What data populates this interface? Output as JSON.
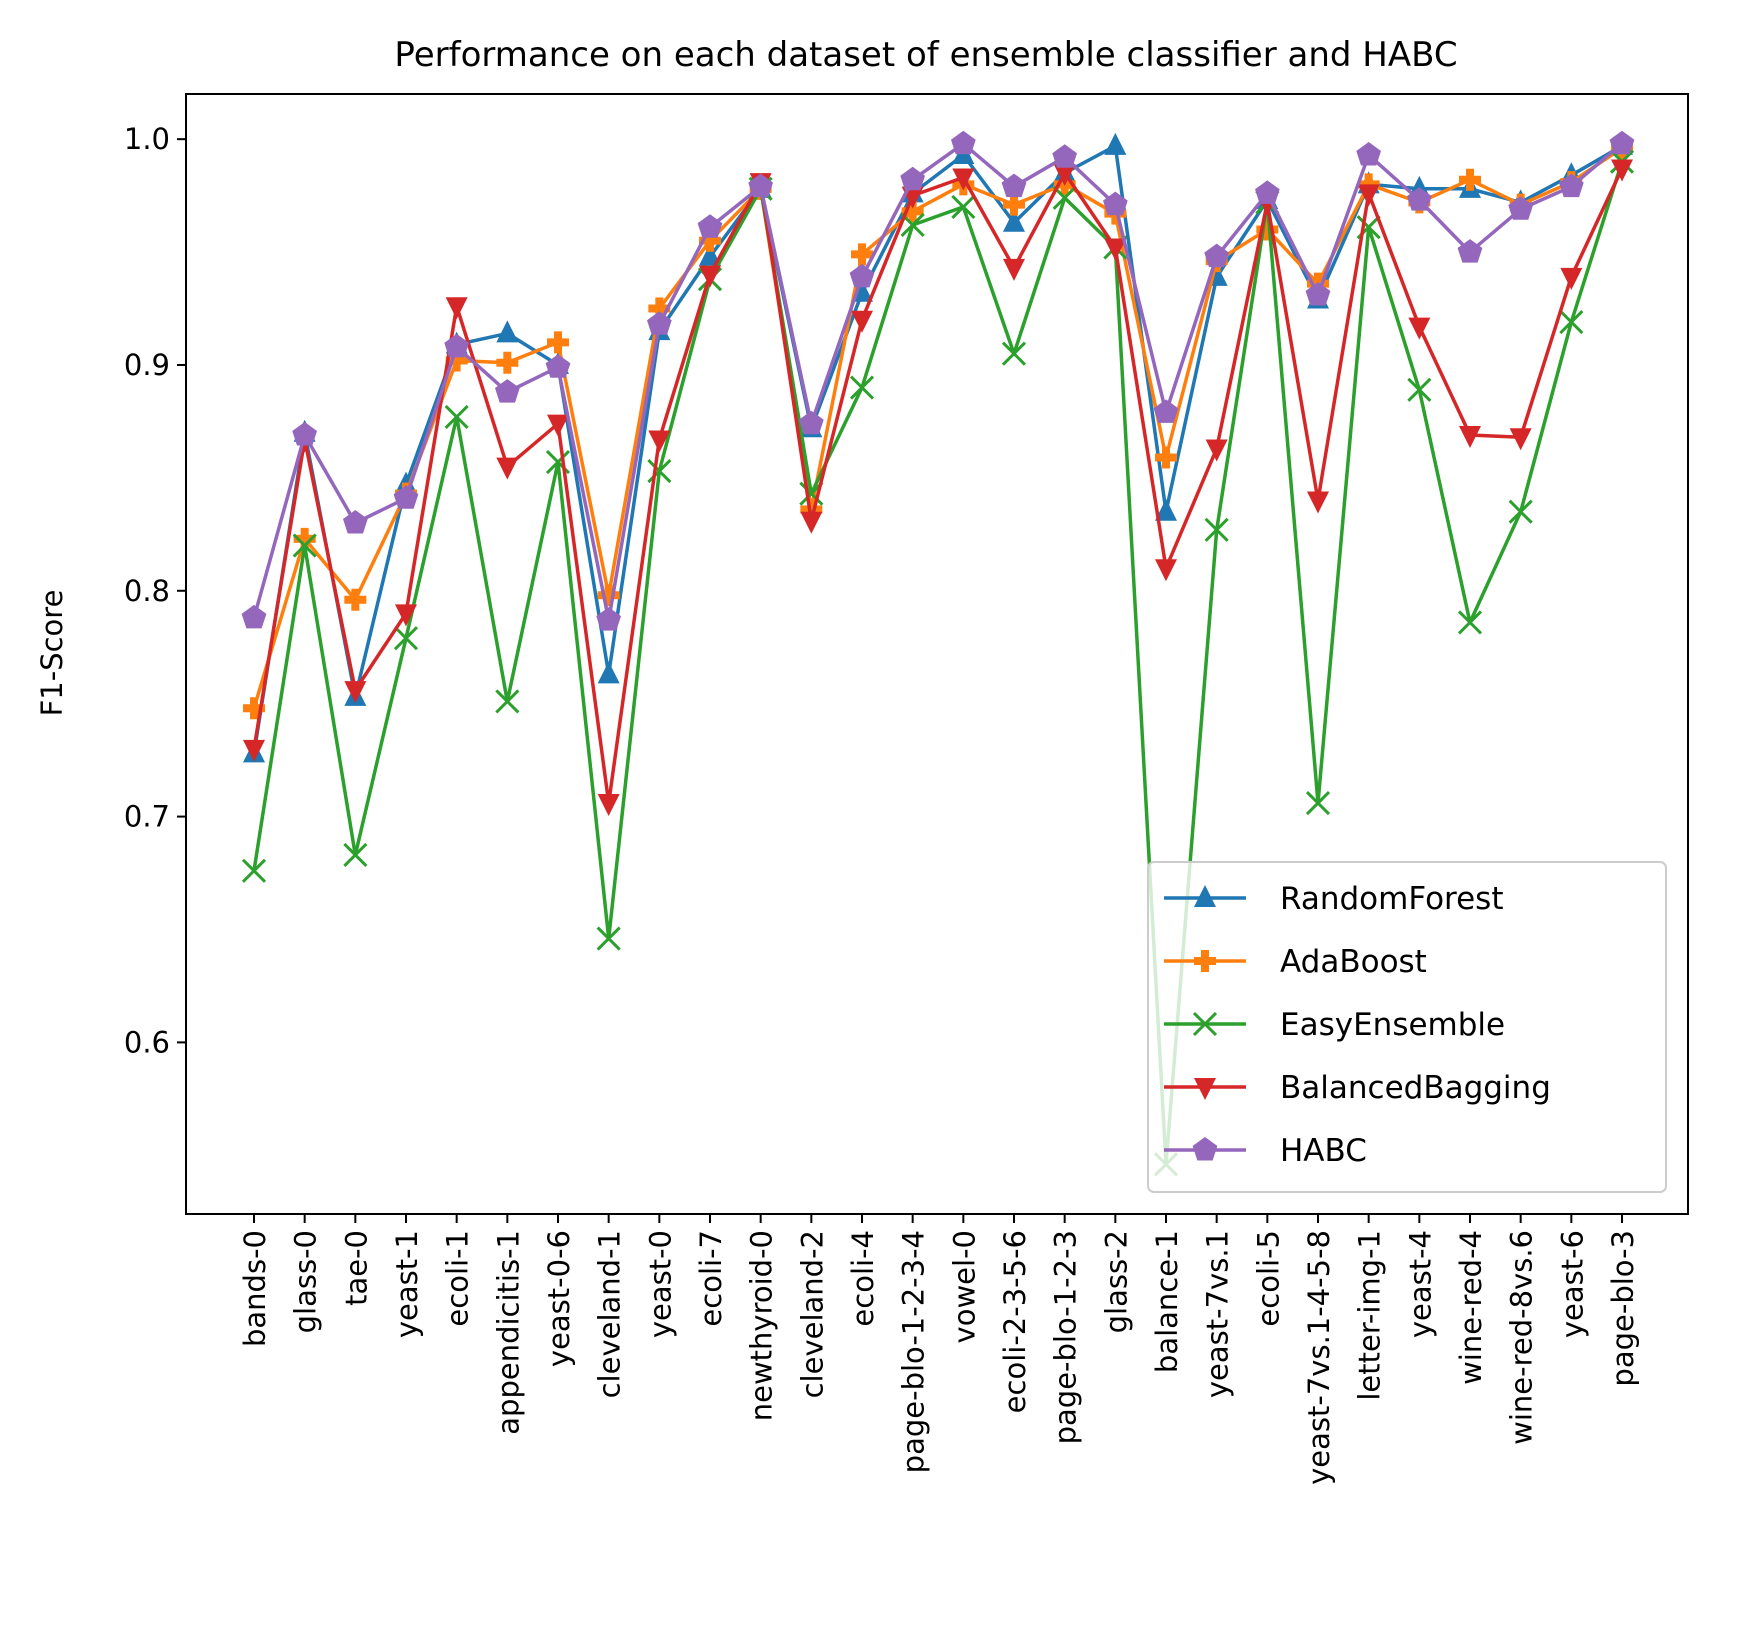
{
  "chart_data": {
    "type": "line",
    "title": "Performance on each dataset of ensemble classifier and HABC",
    "xlabel": "",
    "ylabel": "F1-Score",
    "ylim": [
      0.524,
      1.02
    ],
    "yticks": [
      0.6,
      0.7,
      0.8,
      0.9,
      1.0
    ],
    "ytick_labels": [
      "0.6",
      "0.7",
      "0.8",
      "0.9",
      "1.0"
    ],
    "grid": false,
    "legend_position": "lower right",
    "categories": [
      "bands-0",
      "glass-0",
      "tae-0",
      "yeast-1",
      "ecoli-1",
      "appendicitis-1",
      "yeast-0-6",
      "cleveland-1",
      "yeast-0",
      "ecoli-7",
      "newthyroid-0",
      "cleveland-2",
      "ecoli-4",
      "page-blo-1-2-3-4",
      "vowel-0",
      "ecoli-2-3-5-6",
      "page-blo-1-2-3",
      "glass-2",
      "balance-1",
      "yeast-7vs.1",
      "ecoli-5",
      "yeast-7vs.1-4-5-8",
      "letter-img-1",
      "yeast-4",
      "wine-red-4",
      "wine-red-8vs.6",
      "yeast-6",
      "page-blo-3"
    ],
    "series": [
      {
        "name": "RandomForest",
        "color": "#1f77b4",
        "marker": "triangle-up",
        "values": [
          0.728,
          0.87,
          0.753,
          0.847,
          0.909,
          0.914,
          0.9,
          0.763,
          0.915,
          0.948,
          0.978,
          0.872,
          0.932,
          0.976,
          0.993,
          0.963,
          0.985,
          0.997,
          0.835,
          0.939,
          0.973,
          0.929,
          0.98,
          0.978,
          0.978,
          0.972,
          0.984,
          0.997
        ]
      },
      {
        "name": "AdaBoost",
        "color": "#ff7f0e",
        "marker": "plus-filled",
        "values": [
          0.748,
          0.823,
          0.796,
          0.843,
          0.902,
          0.901,
          0.91,
          0.798,
          0.925,
          0.955,
          0.978,
          0.836,
          0.949,
          0.968,
          0.98,
          0.971,
          0.98,
          0.967,
          0.859,
          0.946,
          0.96,
          0.936,
          0.98,
          0.972,
          0.982,
          0.971,
          0.981,
          0.996
        ]
      },
      {
        "name": "EasyEnsemble",
        "color": "#2ca02c",
        "marker": "x",
        "values": [
          0.676,
          0.82,
          0.683,
          0.779,
          0.877,
          0.751,
          0.857,
          0.646,
          0.853,
          0.938,
          0.978,
          0.843,
          0.89,
          0.962,
          0.97,
          0.905,
          0.974,
          0.952,
          0.546,
          0.827,
          0.972,
          0.706,
          0.961,
          0.889,
          0.786,
          0.835,
          0.919,
          0.99
        ]
      },
      {
        "name": "BalancedBagging",
        "color": "#d62728",
        "marker": "triangle-down",
        "values": [
          0.73,
          0.867,
          0.756,
          0.79,
          0.926,
          0.855,
          0.874,
          0.706,
          0.867,
          0.94,
          0.981,
          0.831,
          0.92,
          0.975,
          0.983,
          0.943,
          0.985,
          0.952,
          0.81,
          0.863,
          0.972,
          0.84,
          0.976,
          0.917,
          0.869,
          0.868,
          0.939,
          0.987
        ]
      },
      {
        "name": "HABC",
        "color": "#9467bd",
        "marker": "pentagon",
        "values": [
          0.788,
          0.869,
          0.83,
          0.841,
          0.908,
          0.888,
          0.899,
          0.787,
          0.918,
          0.961,
          0.979,
          0.874,
          0.939,
          0.982,
          0.998,
          0.979,
          0.992,
          0.971,
          0.879,
          0.948,
          0.976,
          0.931,
          0.993,
          0.973,
          0.95,
          0.969,
          0.979,
          0.998
        ]
      }
    ]
  }
}
